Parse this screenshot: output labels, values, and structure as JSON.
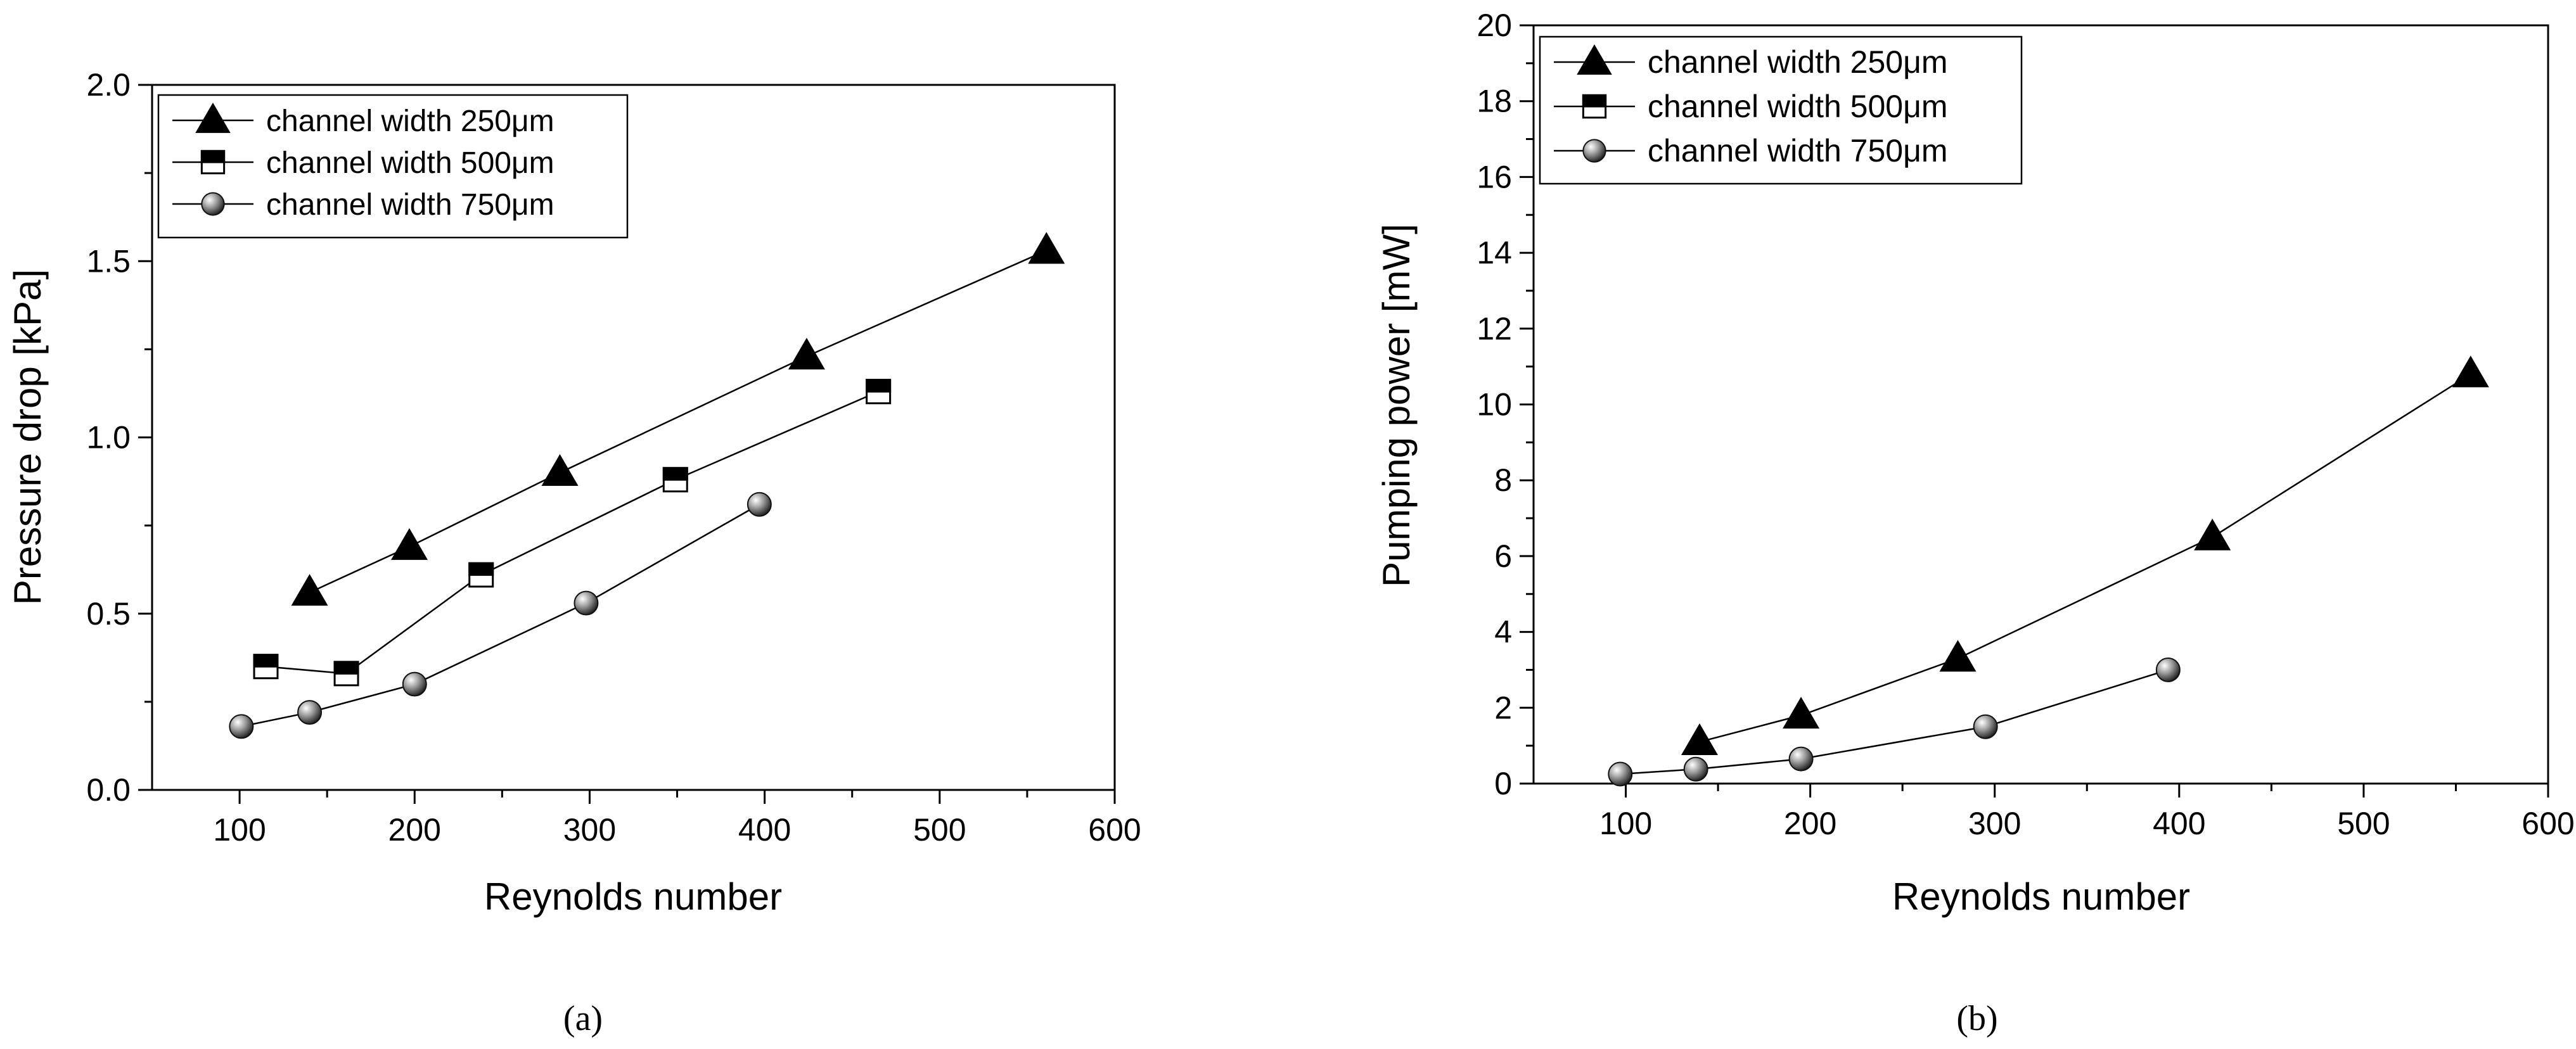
{
  "panels": [
    {
      "label": "a",
      "label_text": "(a)"
    },
    {
      "label": "b",
      "label_text": "(b)"
    }
  ],
  "chart_data": [
    {
      "type": "line",
      "panel": "a",
      "title": "",
      "xlabel": "Reynolds number",
      "ylabel": "Pressure drop [kPa]",
      "xlim": [
        50,
        600
      ],
      "ylim": [
        0.0,
        2.0
      ],
      "xticks": [
        "100",
        "200",
        "300",
        "400",
        "500",
        "600"
      ],
      "xtick_values": [
        100,
        200,
        300,
        400,
        500,
        600
      ],
      "yticks": [
        "0.0",
        "0.5",
        "1.0",
        "1.5",
        "2.0"
      ],
      "ytick_values": [
        0.0,
        0.5,
        1.0,
        1.5,
        2.0
      ],
      "legend_position": "top-left",
      "series": [
        {
          "name": "channel width 250μm",
          "marker": "triangle",
          "x": [
            140,
            197,
            283,
            424,
            561
          ],
          "y": [
            0.56,
            0.69,
            0.9,
            1.23,
            1.53
          ]
        },
        {
          "name": "channel width 500μm",
          "marker": "half-square",
          "x": [
            115,
            161,
            238,
            349,
            465
          ],
          "y": [
            0.35,
            0.33,
            0.61,
            0.88,
            1.13
          ]
        },
        {
          "name": "channel width 750μm",
          "marker": "sphere",
          "x": [
            101,
            140,
            200,
            298,
            397
          ],
          "y": [
            0.18,
            0.22,
            0.3,
            0.53,
            0.81
          ]
        }
      ]
    },
    {
      "type": "line",
      "panel": "b",
      "title": "",
      "xlabel": "Reynolds number",
      "ylabel": "Pumping power [mW]",
      "xlim": [
        50,
        600
      ],
      "ylim": [
        0,
        20
      ],
      "xticks": [
        "100",
        "200",
        "300",
        "400",
        "500",
        "600"
      ],
      "xtick_values": [
        100,
        200,
        300,
        400,
        500,
        600
      ],
      "yticks": [
        "0",
        "2",
        "4",
        "6",
        "8",
        "10",
        "12",
        "14",
        "16",
        "18",
        "20"
      ],
      "ytick_values": [
        0,
        2,
        4,
        6,
        8,
        10,
        12,
        14,
        16,
        18,
        20
      ],
      "legend_position": "top-left",
      "series": [
        {
          "name": "channel width 250μm",
          "marker": "triangle",
          "x": [
            140,
            195,
            280,
            418,
            558
          ],
          "y": [
            1.1,
            1.8,
            3.3,
            6.5,
            10.8
          ]
        },
        {
          "name": "channel width 500μm",
          "marker": "half-square",
          "x": [],
          "y": []
        },
        {
          "name": "channel width 750μm",
          "marker": "sphere",
          "x": [
            97,
            138,
            195,
            295,
            394
          ],
          "y": [
            0.25,
            0.38,
            0.65,
            1.5,
            3.0
          ]
        }
      ]
    }
  ]
}
